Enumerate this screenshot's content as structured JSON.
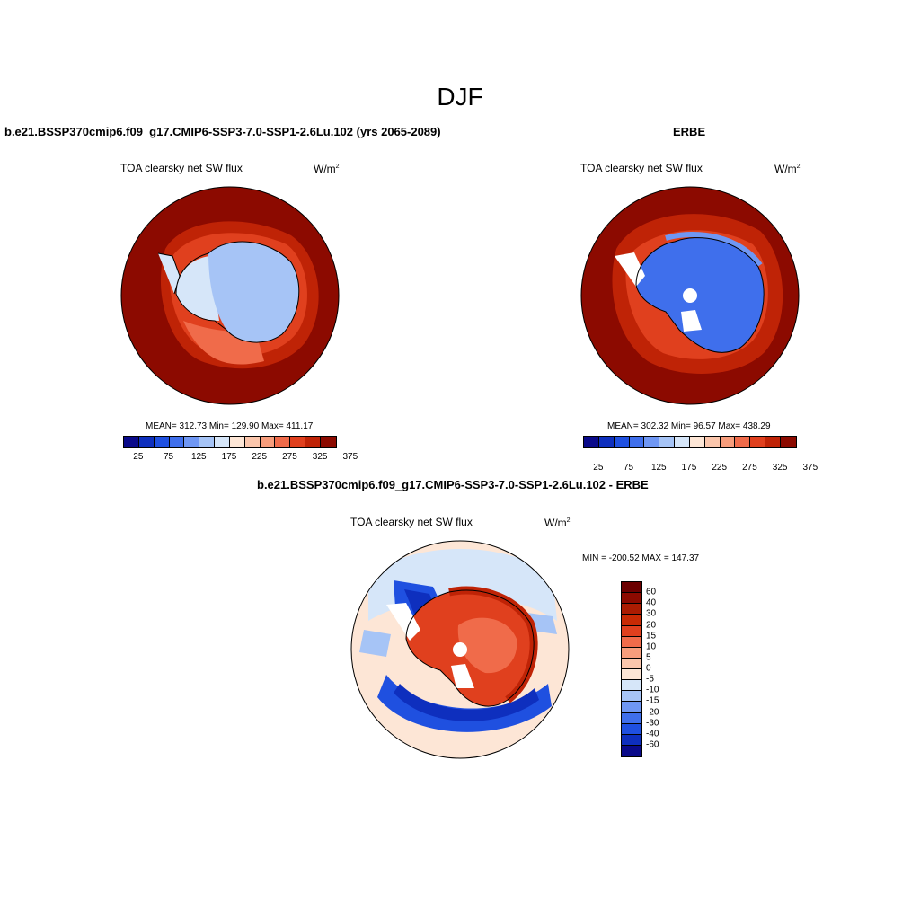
{
  "figure": {
    "title": "DJF",
    "colors": {
      "abs_scale": [
        "#0a0a8a",
        "#0e2fbe",
        "#1f50e0",
        "#3f6fec",
        "#6f97f4",
        "#a6c4f6",
        "#d6e6f9",
        "#fde6d6",
        "#fbc6ac",
        "#f79d7c",
        "#f06b4a",
        "#e0401e",
        "#bf2306",
        "#8c0a00"
      ],
      "diff_scale": [
        "#8c0a00",
        "#ab1c02",
        "#c82a04",
        "#e0401e",
        "#f06b4a",
        "#f79d7c",
        "#fbc6ac",
        "#fde6d6",
        "#d6e6f9",
        "#a6c4f6",
        "#6f97f4",
        "#3f6fec",
        "#1f50e0",
        "#0e2fbe",
        "#0a0a8a"
      ],
      "land_white": "#ffffff"
    }
  },
  "panels": {
    "model": {
      "title": "b.e21.BSSP370cmip6.f09_g17.CMIP6-SSP3-7.0-SSP1-2.6Lu.102 (yrs 2065-2089)",
      "variable": "TOA clearsky net SW flux",
      "units_base": "W/m",
      "units_exp": "2",
      "stats": "MEAN= 312.73  Min= 129.90  Max= 411.17",
      "stat_values": {
        "mean": 312.73,
        "min": 129.9,
        "max": 411.17
      },
      "colorbar_ticks": [
        "25",
        "75",
        "125",
        "175",
        "225",
        "275",
        "325",
        "375"
      ]
    },
    "obs": {
      "title": "ERBE",
      "variable": "TOA clearsky net SW flux",
      "units_base": "W/m",
      "units_exp": "2",
      "stats": "MEAN= 302.32  Min=  96.57  Max= 438.29",
      "stat_values": {
        "mean": 302.32,
        "min": 96.57,
        "max": 438.29
      },
      "colorbar_ticks": [
        "25",
        "75",
        "125",
        "175",
        "225",
        "275",
        "325",
        "375"
      ]
    },
    "diff": {
      "title": "b.e21.BSSP370cmip6.f09_g17.CMIP6-SSP3-7.0-SSP1-2.6Lu.102 - ERBE",
      "variable": "TOA clearsky net SW flux",
      "units_base": "W/m",
      "units_exp": "2",
      "stats": "MIN = -200.52 MAX = 147.37",
      "stat_values": {
        "min": -200.52,
        "max": 147.37
      },
      "colorbar_ticks": [
        "60",
        "40",
        "30",
        "20",
        "15",
        "10",
        "5",
        "0",
        "-5",
        "-10",
        "-15",
        "-20",
        "-30",
        "-40",
        "-60"
      ]
    }
  }
}
